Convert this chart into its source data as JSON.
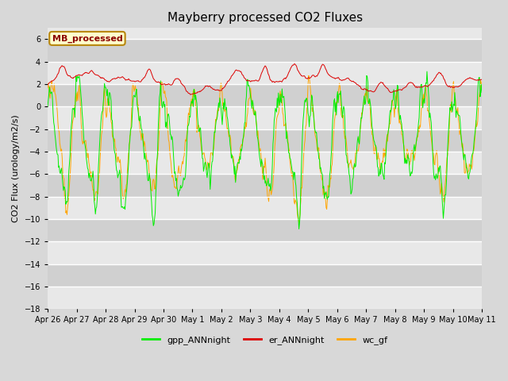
{
  "title": "Mayberry processed CO2 Fluxes",
  "ylabel": "CO2 Flux (urology/m2/s)",
  "ylim": [
    -18,
    7
  ],
  "yticks": [
    -18,
    -16,
    -14,
    -12,
    -10,
    -8,
    -6,
    -4,
    -2,
    0,
    2,
    4,
    6
  ],
  "legend_label": "MB_processed",
  "legend_text_color": "#8B0000",
  "legend_box_facecolor": "#FFFFCC",
  "legend_box_edgecolor": "#B8860B",
  "colors": {
    "gpp_ANNnight": "#00EE00",
    "er_ANNnight": "#DD0000",
    "wc_gf": "#FFA500"
  },
  "fig_bg_color": "#D8D8D8",
  "plot_bg_light": "#E8E8E8",
  "plot_bg_dark": "#D0D0D0",
  "n_points": 720,
  "xtick_labels": [
    "Apr 26",
    "Apr 27",
    "Apr 28",
    "Apr 29",
    "Apr 30",
    "May 1",
    "May 2",
    "May 3",
    "May 4",
    "May 5",
    "May 6",
    "May 7",
    "May 8",
    "May 9",
    "May 10",
    "May 11"
  ],
  "linewidth": 0.7,
  "title_fontsize": 11,
  "axis_label_fontsize": 8,
  "tick_fontsize": 7,
  "legend_fontsize": 8
}
